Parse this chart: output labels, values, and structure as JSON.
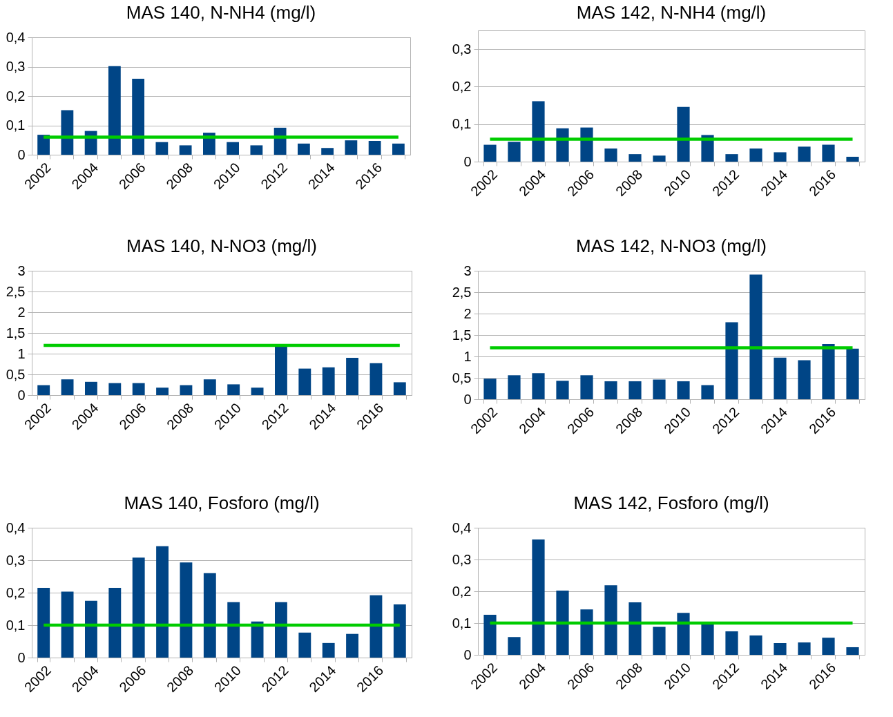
{
  "chart_data": [
    {
      "type": "bar",
      "title": "MAS 140, N-NH4 (mg/l)",
      "categories": [
        "2002",
        null,
        "2004",
        null,
        "2006",
        null,
        "2008",
        null,
        "2010",
        null,
        "2012",
        null,
        "2014",
        null,
        "2016",
        null
      ],
      "series": [
        {
          "color": "#004586",
          "values": [
            0.068,
            0.152,
            0.081,
            0.302,
            0.259,
            0.043,
            0.032,
            0.075,
            0.043,
            0.032,
            0.092,
            0.038,
            0.023,
            0.049,
            0.047,
            0.038
          ]
        },
        {
          "type": "line",
          "color": "#00cc00",
          "values": [
            0.06,
            0.06,
            0.06,
            0.06,
            0.06,
            0.06,
            0.06,
            0.06,
            0.06,
            0.06,
            0.06,
            0.06,
            0.06,
            0.06,
            0.06,
            0.06
          ]
        }
      ],
      "ylim": [
        0,
        0.4
      ],
      "yticks": [
        0,
        {
          "value": 0.1,
          "label": "0,1"
        },
        {
          "value": 0.2,
          "label": "0,2"
        },
        {
          "value": 0.3,
          "label": "0,3"
        },
        {
          "value": 0.4,
          "label": "0,4"
        }
      ],
      "grid": "y"
    },
    {
      "type": "bar",
      "title": "MAS 142, N-NH4 (mg/l)",
      "categories": [
        "2002",
        null,
        "2004",
        null,
        "2006",
        null,
        "2008",
        null,
        "2010",
        null,
        "2012",
        null,
        "2014",
        null,
        "2016",
        null
      ],
      "series": [
        {
          "color": "#004586",
          "values": [
            0.045,
            0.053,
            0.161,
            0.089,
            0.091,
            0.035,
            0.02,
            0.016,
            0.146,
            0.071,
            0.02,
            0.035,
            0.025,
            0.04,
            0.045,
            0.013
          ]
        },
        {
          "type": "line",
          "color": "#00cc00",
          "values": [
            0.06,
            0.06,
            0.06,
            0.06,
            0.06,
            0.06,
            0.06,
            0.06,
            0.06,
            0.06,
            0.06,
            0.06,
            0.06,
            0.06,
            0.06,
            0.06
          ]
        }
      ],
      "ylim": [
        0,
        0.35
      ],
      "yticks": [
        0,
        {
          "value": 0.1,
          "label": "0,1"
        },
        {
          "value": 0.2,
          "label": "0,2"
        },
        {
          "value": 0.3,
          "label": "0,3"
        }
      ],
      "grid": "y"
    },
    {
      "type": "bar",
      "title": "MAS 140, N-NO3 (mg/l)",
      "categories": [
        "2002",
        null,
        "2004",
        null,
        "2006",
        null,
        "2008",
        null,
        "2010",
        null,
        "2012",
        null,
        "2014",
        null,
        "2016",
        null
      ],
      "series": [
        {
          "color": "#004586",
          "values": [
            0.24,
            0.38,
            0.32,
            0.29,
            0.29,
            0.18,
            0.24,
            0.38,
            0.26,
            0.18,
            1.18,
            0.64,
            0.67,
            0.9,
            0.77,
            0.31
          ]
        },
        {
          "type": "line",
          "color": "#00cc00",
          "values": [
            1.2,
            1.2,
            1.2,
            1.2,
            1.2,
            1.2,
            1.2,
            1.2,
            1.2,
            1.2,
            1.2,
            1.2,
            1.2,
            1.2,
            1.2,
            1.2
          ]
        }
      ],
      "ylim": [
        0,
        3
      ],
      "yticks": [
        0,
        {
          "value": 0.5,
          "label": "0,5"
        },
        1,
        {
          "value": 1.5,
          "label": "1,5"
        },
        2,
        {
          "value": 2.5,
          "label": "2,5"
        },
        3
      ],
      "grid": "y"
    },
    {
      "type": "bar",
      "title": "MAS 142, N-NO3 (mg/l)",
      "categories": [
        "2002",
        null,
        "2004",
        null,
        "2006",
        null,
        "2008",
        null,
        "2010",
        null,
        "2012",
        null,
        "2014",
        null,
        "2016",
        null
      ],
      "series": [
        {
          "color": "#004586",
          "values": [
            0.48,
            0.56,
            0.61,
            0.43,
            0.56,
            0.42,
            0.42,
            0.46,
            0.42,
            0.33,
            1.8,
            2.91,
            0.97,
            0.91,
            1.29,
            1.18
          ]
        },
        {
          "type": "line",
          "color": "#00cc00",
          "values": [
            1.2,
            1.2,
            1.2,
            1.2,
            1.2,
            1.2,
            1.2,
            1.2,
            1.2,
            1.2,
            1.2,
            1.2,
            1.2,
            1.2,
            1.2,
            1.2
          ]
        }
      ],
      "ylim": [
        0,
        3
      ],
      "yticks": [
        0,
        {
          "value": 0.5,
          "label": "0,5"
        },
        1,
        {
          "value": 1.5,
          "label": "1,5"
        },
        2,
        {
          "value": 2.5,
          "label": "2,5"
        },
        3
      ],
      "grid": "y"
    },
    {
      "type": "bar",
      "title": "MAS 140, Fosforo (mg/l)",
      "categories": [
        "2002",
        null,
        "2004",
        null,
        "2006",
        null,
        "2008",
        null,
        "2010",
        null,
        "2012",
        null,
        "2014",
        null,
        "2016",
        null
      ],
      "series": [
        {
          "color": "#004586",
          "values": [
            0.215,
            0.203,
            0.175,
            0.215,
            0.308,
            0.343,
            0.293,
            0.26,
            0.171,
            0.111,
            0.171,
            0.077,
            0.045,
            0.073,
            0.192,
            0.164
          ]
        },
        {
          "type": "line",
          "color": "#00cc00",
          "values": [
            0.1,
            0.1,
            0.1,
            0.1,
            0.1,
            0.1,
            0.1,
            0.1,
            0.1,
            0.1,
            0.1,
            0.1,
            0.1,
            0.1,
            0.1,
            0.1
          ]
        }
      ],
      "ylim": [
        0,
        0.4
      ],
      "yticks": [
        0,
        {
          "value": 0.1,
          "label": "0,1"
        },
        {
          "value": 0.2,
          "label": "0,2"
        },
        {
          "value": 0.3,
          "label": "0,3"
        },
        {
          "value": 0.4,
          "label": "0,4"
        }
      ],
      "grid": "y"
    },
    {
      "type": "bar",
      "title": "MAS 142, Fosforo (mg/l)",
      "categories": [
        "2002",
        null,
        "2004",
        null,
        "2006",
        null,
        "2008",
        null,
        "2010",
        null,
        "2012",
        null,
        "2014",
        null,
        "2016",
        null
      ],
      "series": [
        {
          "color": "#004586",
          "values": [
            0.126,
            0.056,
            0.363,
            0.202,
            0.143,
            0.219,
            0.165,
            0.088,
            0.132,
            0.096,
            0.074,
            0.061,
            0.037,
            0.039,
            0.054,
            0.024
          ]
        },
        {
          "type": "line",
          "color": "#00cc00",
          "values": [
            0.1,
            0.1,
            0.1,
            0.1,
            0.1,
            0.1,
            0.1,
            0.1,
            0.1,
            0.1,
            0.1,
            0.1,
            0.1,
            0.1,
            0.1,
            0.1
          ]
        }
      ],
      "ylim": [
        0,
        0.4
      ],
      "yticks": [
        0,
        {
          "value": 0.1,
          "label": "0,1"
        },
        {
          "value": 0.2,
          "label": "0,2"
        },
        {
          "value": 0.3,
          "label": "0,3"
        },
        {
          "value": 0.4,
          "label": "0,4"
        }
      ],
      "grid": "y"
    }
  ]
}
